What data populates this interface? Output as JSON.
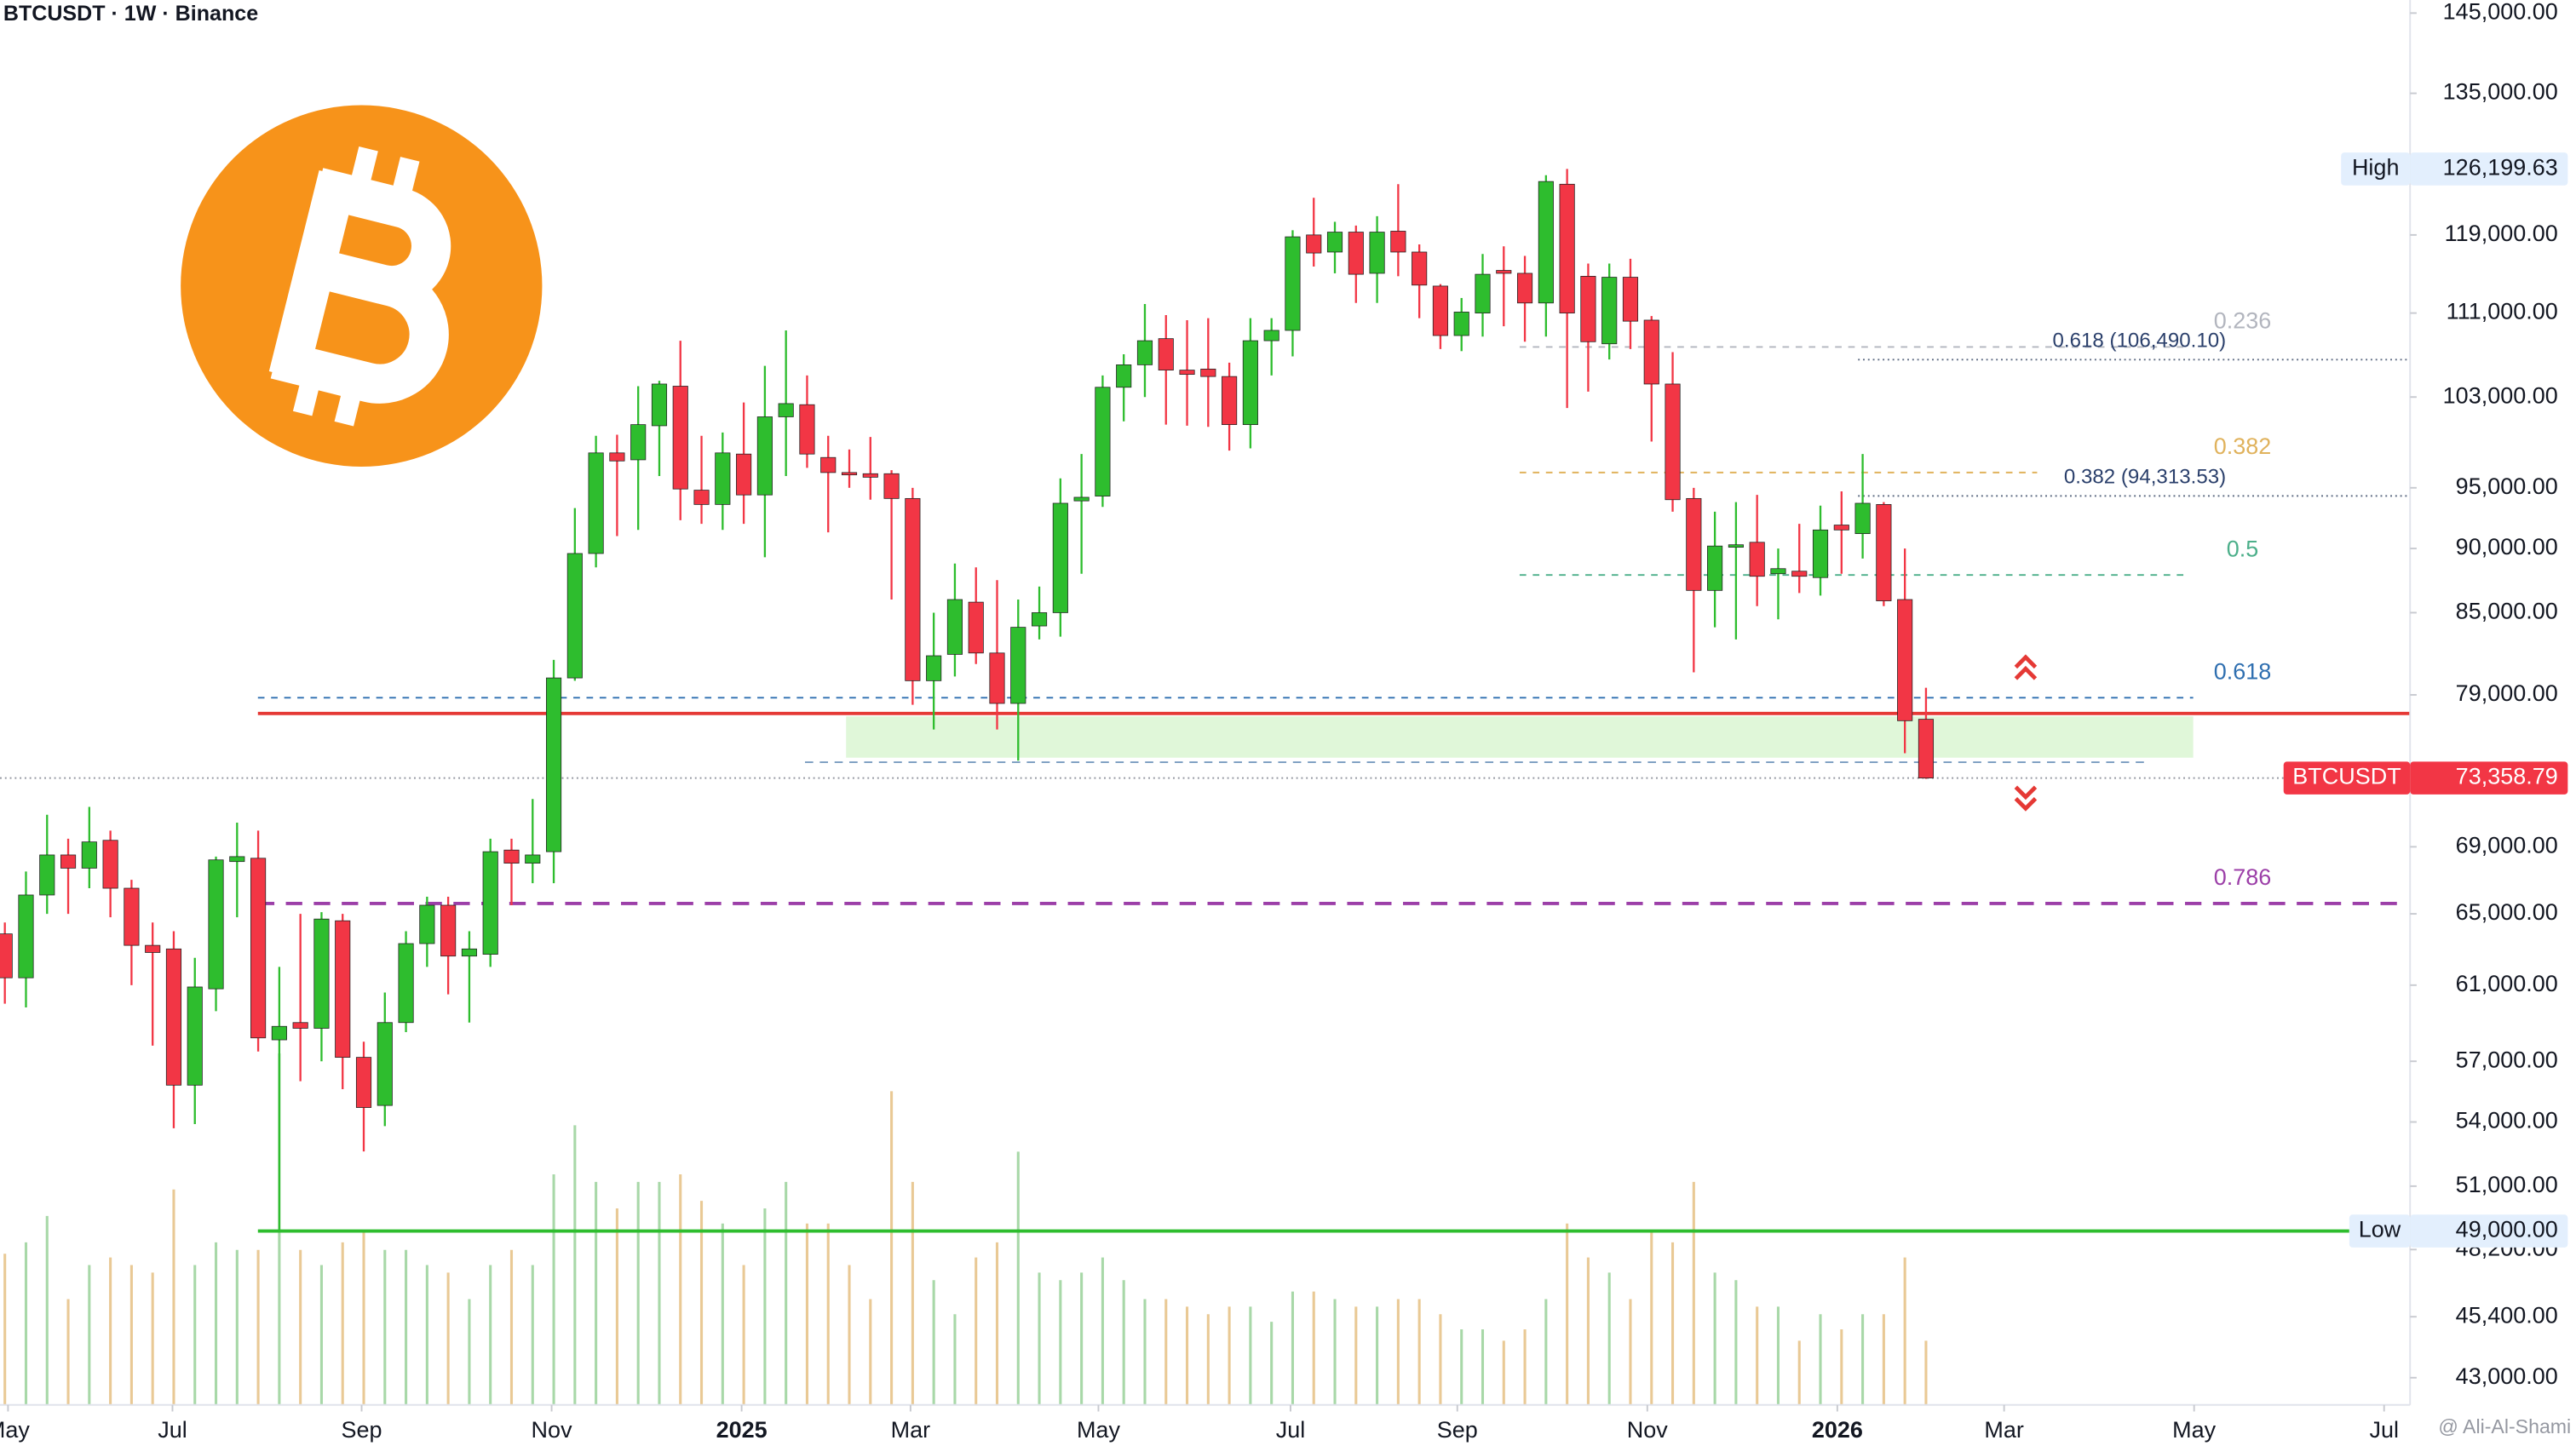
{
  "chart_data": {
    "type": "candlestick",
    "title": "BTCUSDT · 1W · Binance",
    "watermark": "@ Ali-Al-Shami",
    "log_scale": true,
    "up_color": "#2ebd2e",
    "down_color": "#f23645",
    "volume_up_color": "#a8d8a8",
    "volume_down_color": "#e9c995",
    "categories": [
      null,
      null,
      null,
      null,
      null,
      null,
      null,
      null,
      null,
      null,
      null,
      null,
      null,
      null,
      null,
      null,
      null,
      null,
      null,
      null,
      null,
      null,
      null,
      null,
      null,
      null,
      null,
      null,
      null,
      null,
      null,
      null,
      null,
      null,
      null,
      null,
      null,
      null,
      null,
      null,
      null,
      null,
      null,
      null,
      null,
      null,
      null,
      null,
      null,
      null,
      null,
      null,
      null,
      null,
      null,
      null,
      null,
      null,
      null,
      null,
      null,
      null,
      null,
      null,
      null,
      null,
      null,
      null,
      null,
      null,
      null,
      null,
      null,
      null,
      null,
      null,
      null,
      null,
      null,
      null,
      null,
      null,
      null,
      null,
      null,
      null,
      null,
      null,
      null,
      null,
      null,
      null
    ],
    "open": [
      63850,
      61400,
      66100,
      68500,
      67700,
      69400,
      66500,
      63200,
      63000,
      55800,
      60800,
      68100,
      68300,
      58100,
      59000,
      58700,
      64600,
      57200,
      54800,
      59000,
      63300,
      65500,
      62600,
      62700,
      68800,
      68000,
      68700,
      80200,
      89600,
      98000,
      97400,
      100400,
      104000,
      94800,
      93600,
      97900,
      94400,
      101200,
      102300,
      97600,
      96300,
      96200,
      96200,
      94100,
      80000,
      81900,
      85800,
      82000,
      78400,
      84000,
      85000,
      93900,
      94300,
      103900,
      106000,
      108500,
      105500,
      105600,
      104900,
      100500,
      108300,
      109300,
      119000,
      117200,
      119300,
      115000,
      119400,
      117200,
      113700,
      108800,
      111000,
      115300,
      115000,
      112000,
      124500,
      114700,
      108000,
      114600,
      110300,
      104200,
      94100,
      86700,
      90100,
      90500,
      88000,
      88200,
      87700,
      91900,
      91200,
      93600,
      86000,
      77300
    ],
    "high": [
      64500,
      67500,
      71000,
      69500,
      71500,
      70000,
      67000,
      64500,
      64000,
      62500,
      68400,
      70500,
      70000,
      62000,
      65000,
      65100,
      65000,
      58000,
      60600,
      64000,
      66000,
      66000,
      64000,
      69500,
      69500,
      72000,
      81500,
      93300,
      99500,
      99600,
      104000,
      104500,
      108300,
      99500,
      99800,
      102500,
      105900,
      109300,
      105000,
      99500,
      98300,
      99400,
      96500,
      95000,
      85000,
      88800,
      88500,
      87500,
      86000,
      87000,
      95800,
      97900,
      105000,
      107000,
      111900,
      110800,
      110300,
      110500,
      106200,
      110500,
      110500,
      119500,
      123000,
      120400,
      120000,
      121000,
      124500,
      118000,
      113900,
      112500,
      117000,
      117800,
      116800,
      125500,
      126199.63,
      116000,
      116000,
      116500,
      110700,
      107200,
      95000,
      93000,
      93800,
      94400,
      90000,
      92000,
      93500,
      94700,
      97900,
      93800,
      90000,
      79500
    ],
    "low": [
      60000,
      59800,
      65000,
      65000,
      66500,
      64800,
      61000,
      57800,
      53700,
      53900,
      59600,
      64800,
      57500,
      49000,
      56000,
      57000,
      55600,
      52600,
      53800,
      58500,
      62000,
      60500,
      59000,
      62000,
      65500,
      66800,
      66800,
      80000,
      88500,
      91000,
      91500,
      96000,
      92300,
      92000,
      91500,
      92000,
      89300,
      96000,
      96700,
      91300,
      95000,
      94000,
      86000,
      78300,
      76600,
      80300,
      81200,
      76600,
      74500,
      83000,
      83200,
      88000,
      93400,
      100800,
      103000,
      100500,
      100400,
      100300,
      98200,
      98400,
      105000,
      106800,
      115700,
      115000,
      112000,
      112000,
      114700,
      110500,
      107500,
      107300,
      108700,
      109700,
      108200,
      108700,
      102000,
      103500,
      106500,
      107500,
      99000,
      93000,
      80600,
      83900,
      83000,
      85500,
      84500,
      86500,
      86300,
      88000,
      89200,
      85500,
      75000,
      73300
    ],
    "close": [
      61400,
      66100,
      68500,
      67700,
      69300,
      66500,
      63200,
      62800,
      55800,
      60900,
      68200,
      68400,
      58200,
      58800,
      58700,
      64700,
      57200,
      54700,
      59000,
      63300,
      65500,
      62600,
      63000,
      68700,
      68000,
      68500,
      80200,
      89600,
      98000,
      97300,
      100500,
      104200,
      94900,
      93600,
      98000,
      94400,
      101200,
      102400,
      97900,
      96300,
      96100,
      95900,
      94100,
      80000,
      81800,
      86000,
      82000,
      78400,
      83900,
      85000,
      93700,
      94200,
      103900,
      106000,
      108300,
      105500,
      105100,
      104900,
      100500,
      108300,
      109300,
      118800,
      117100,
      119300,
      114900,
      119300,
      117200,
      113800,
      108800,
      111100,
      114900,
      115000,
      112000,
      124800,
      111000,
      108200,
      114600,
      110200,
      104200,
      94000,
      86700,
      90200,
      90300,
      87800,
      88400,
      87800,
      91500,
      91500,
      93700,
      85900,
      77200,
      73358.79
    ],
    "volume": [
      40,
      43,
      50,
      28,
      37,
      39,
      37,
      35,
      57,
      37,
      43,
      41,
      41,
      93,
      41,
      37,
      43,
      46,
      41,
      41,
      37,
      35,
      28,
      37,
      41,
      37,
      61,
      74,
      59,
      52,
      59,
      59,
      61,
      54,
      48,
      37,
      52,
      59,
      48,
      48,
      37,
      28,
      83,
      59,
      33,
      24,
      39,
      43,
      67,
      35,
      33,
      35,
      39,
      33,
      28,
      28,
      26,
      24,
      26,
      26,
      22,
      30,
      30,
      28,
      26,
      26,
      28,
      28,
      24,
      20,
      20,
      17,
      20,
      28,
      48,
      39,
      35,
      28,
      46,
      43,
      59,
      35,
      33,
      26,
      26,
      17,
      24,
      20,
      24,
      24,
      39,
      17
    ],
    "vlim": [
      0,
      100
    ],
    "xlim": [
      -0.23,
      113.93
    ],
    "xticks": [
      {
        "value": 0.15,
        "label": "May"
      },
      {
        "value": 7.94,
        "label": "Jul"
      },
      {
        "value": 16.9,
        "label": "Sep"
      },
      {
        "value": 25.9,
        "label": "Nov"
      },
      {
        "value": 34.9,
        "label": "2025"
      },
      {
        "value": 42.9,
        "label": "Mar"
      },
      {
        "value": 51.8,
        "label": "May"
      },
      {
        "value": 60.9,
        "label": "Jul"
      },
      {
        "value": 68.8,
        "label": "Sep"
      },
      {
        "value": 77.8,
        "label": "Nov"
      },
      {
        "value": 86.8,
        "label": "2026"
      },
      {
        "value": 94.7,
        "label": "Mar"
      },
      {
        "value": 103.7,
        "label": "May"
      },
      {
        "value": 112.7,
        "label": "Jul"
      }
    ],
    "ylim": [
      41970,
      146700
    ],
    "yticks": [
      {
        "value": 145000,
        "label": "145,000.00"
      },
      {
        "value": 135000,
        "label": "135,000.00"
      },
      {
        "value": 119000,
        "label": "119,000.00"
      },
      {
        "value": 111000,
        "label": "111,000.00"
      },
      {
        "value": 103000,
        "label": "103,000.00"
      },
      {
        "value": 95000,
        "label": "95,000.00"
      },
      {
        "value": 90000,
        "label": "90,000.00"
      },
      {
        "value": 85000,
        "label": "85,000.00"
      },
      {
        "value": 79000,
        "label": "79,000.00"
      },
      {
        "value": 69000,
        "label": "69,000.00"
      },
      {
        "value": 65000,
        "label": "65,000.00"
      },
      {
        "value": 61000,
        "label": "61,000.00"
      },
      {
        "value": 57000,
        "label": "57,000.00"
      },
      {
        "value": 54000,
        "label": "54,000.00"
      },
      {
        "value": 51000,
        "label": "51,000.00"
      },
      {
        "value": 48200,
        "label": "48,200.00"
      },
      {
        "value": 45400,
        "label": "45,400.00"
      },
      {
        "value": 43000,
        "label": "43,000.00"
      }
    ],
    "fib_levels": [
      {
        "ratio": 0.236,
        "price": 107700,
        "color": "#b2b5be"
      },
      {
        "ratio": 0.382,
        "price": 96300,
        "color": "#e0b25c"
      },
      {
        "ratio": 0.5,
        "price": 87900,
        "color": "#4caf8a"
      },
      {
        "ratio": 0.618,
        "price": 78800,
        "color": "#2f6fb0"
      },
      {
        "ratio": 0.786,
        "price": 65600,
        "color": "#9c3fa8"
      }
    ],
    "fib_annotations": [
      {
        "label": "0.618 (106,490.10)",
        "price": 106490.1
      },
      {
        "label": "0.382 (94,313.53)",
        "price": 94313.53
      }
    ],
    "resistance_line": {
      "price": 77700,
      "color": "#e53935"
    },
    "support_zone": {
      "low": 74700,
      "high": 77500,
      "color": "#d8f5d0"
    },
    "support_dash": {
      "price": 74400,
      "color": "#7a9cc0"
    },
    "high_marker": {
      "label": "High",
      "value": 126199.63,
      "value_label": "126,199.63"
    },
    "low_marker": {
      "label": "Low",
      "value": 49000,
      "value_label": "49,000.00",
      "color": "#2ebd2e"
    },
    "last_price": {
      "label": "BTCUSDT",
      "value": 73358.79,
      "value_label": "73,358.79",
      "color": "#f23645"
    }
  }
}
